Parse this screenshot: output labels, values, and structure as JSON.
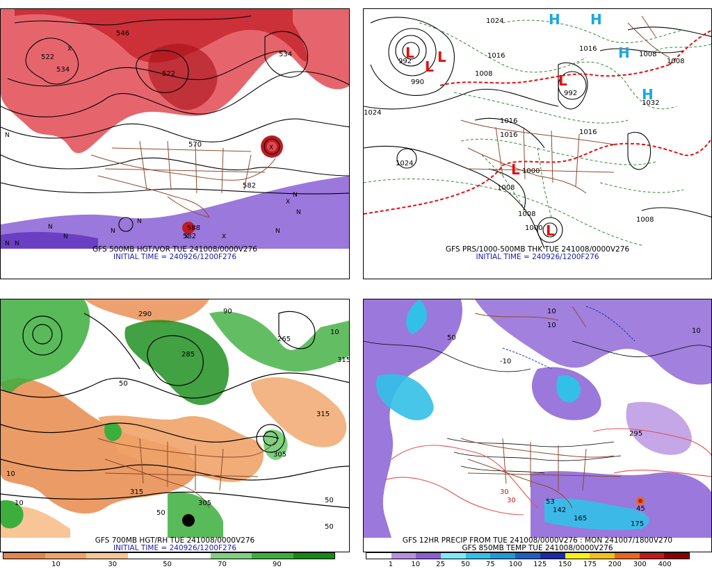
{
  "panels": [
    {
      "id": "p1",
      "caption_1": "GFS 500MB HGT/VOR TUE 241008/0000V276",
      "caption_2": "INITIAL TIME = 240926/1200F276",
      "labels": [
        "546",
        "522",
        "534",
        "522",
        "534",
        "570",
        "582",
        "582",
        "588",
        "N",
        "N",
        "N",
        "N",
        "N",
        "N",
        "N",
        "N",
        "N",
        "X",
        "X",
        "X",
        "X",
        "X",
        "N"
      ]
    },
    {
      "id": "p2",
      "caption_1": "GFS PRS/1000-500MB THK TUE 241008/0000V276",
      "caption_2": "INITIAL TIME = 240926/1200F276",
      "labels": [
        "1024",
        "1016",
        "1024",
        "1016",
        "1008",
        "1008",
        "1016",
        "1016",
        "1008",
        "1008",
        "1000",
        "1000",
        "1008",
        "992",
        "990",
        "1032",
        "992",
        "1016",
        "1024",
        "1008"
      ],
      "symbols": [
        "L",
        "L",
        "L",
        "L",
        "L",
        "L",
        "H",
        "H",
        "H",
        "H"
      ]
    },
    {
      "id": "p3",
      "caption_1": "GFS 700MB HGT/RH TUE 241008/0000V276",
      "caption_2": "INITIAL TIME = 240926/1200F276",
      "labels": [
        "290",
        "265",
        "315",
        "90",
        "50",
        "10",
        "305",
        "315",
        "10",
        "50",
        "50",
        "315",
        "10",
        "50",
        "305",
        "285"
      ]
    },
    {
      "id": "p4",
      "caption_1": "GFS 12HR PRECIP FROM TUE 241008/0000V276 : MON 241007/1800V270",
      "caption_2": "GFS 850MB TEMP TUE 241008/0000V276",
      "labels": [
        "10",
        "10",
        "50",
        "10",
        "-10",
        "295",
        "30",
        "30",
        "53",
        "45",
        "142",
        "165",
        "175"
      ]
    }
  ],
  "colorbar_left": {
    "ticks": [
      "10",
      "30",
      "50",
      "70",
      "90"
    ],
    "colors": [
      "#e2874f",
      "#f0a368",
      "#f8c596",
      "#ffffff",
      "#ffffff",
      "#7fd07f",
      "#3cae3c",
      "#138a13"
    ]
  },
  "colorbar_right": {
    "ticks": [
      "1",
      "10",
      "25",
      "50",
      "75",
      "100",
      "125",
      "150",
      "175",
      "200",
      "300",
      "400"
    ],
    "colors": [
      "#ffffff",
      "#b690e0",
      "#8a5fd3",
      "#7fe8ff",
      "#33c0e8",
      "#2099d8",
      "#1b5fc4",
      "#1a2aa8",
      "#f7f01a",
      "#f2c01a",
      "#e8661a",
      "#c01a1a",
      "#8a0000"
    ]
  },
  "colors": {
    "vorticity_red": "#d8242c",
    "vorticity_purple": "#8a60d6",
    "border_brown": "#8b4a2b",
    "isobar_black": "#000000",
    "thickness_green": "#2a8a2a",
    "thickness_red": "#e01010",
    "rh_green": "#2a9a2a",
    "rh_orange": "#e88a4a",
    "precip_purple": "#8a60d6",
    "precip_cyan": "#33c0e8",
    "caption_blue": "#1a1aa8"
  }
}
